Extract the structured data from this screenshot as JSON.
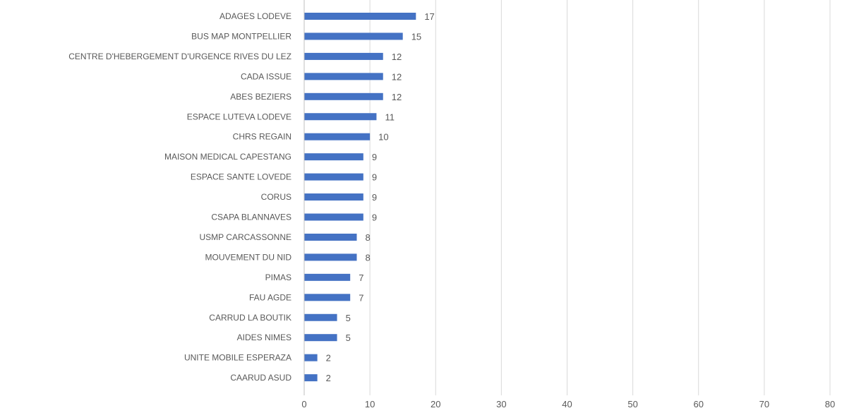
{
  "chart_data": {
    "type": "bar",
    "orientation": "horizontal",
    "categories": [
      "ADAGES LODEVE",
      "BUS MAP MONTPELLIER",
      "CENTRE D'HEBERGEMENT D'URGENCE RIVES DU LEZ",
      "CADA ISSUE",
      "ABES BEZIERS",
      "ESPACE LUTEVA LODEVE",
      "CHRS REGAIN",
      "MAISON MEDICAL CAPESTANG",
      "ESPACE SANTE LOVEDE",
      "CORUS",
      "CSAPA BLANNAVES",
      "USMP CARCASSONNE",
      "MOUVEMENT DU NID",
      "PIMAS",
      "FAU AGDE",
      "CARRUD LA BOUTIK",
      "AIDES NIMES",
      "UNITE MOBILE ESPERAZA",
      "CAARUD ASUD"
    ],
    "values": [
      17,
      15,
      12,
      12,
      12,
      11,
      10,
      9,
      9,
      9,
      9,
      8,
      8,
      7,
      7,
      5,
      5,
      2,
      2
    ],
    "xlim": [
      0,
      80
    ],
    "xticks": [
      0,
      10,
      20,
      30,
      40,
      50,
      60,
      70,
      80
    ],
    "grid": true,
    "bar_color": "#4472c4",
    "data_labels": true
  }
}
